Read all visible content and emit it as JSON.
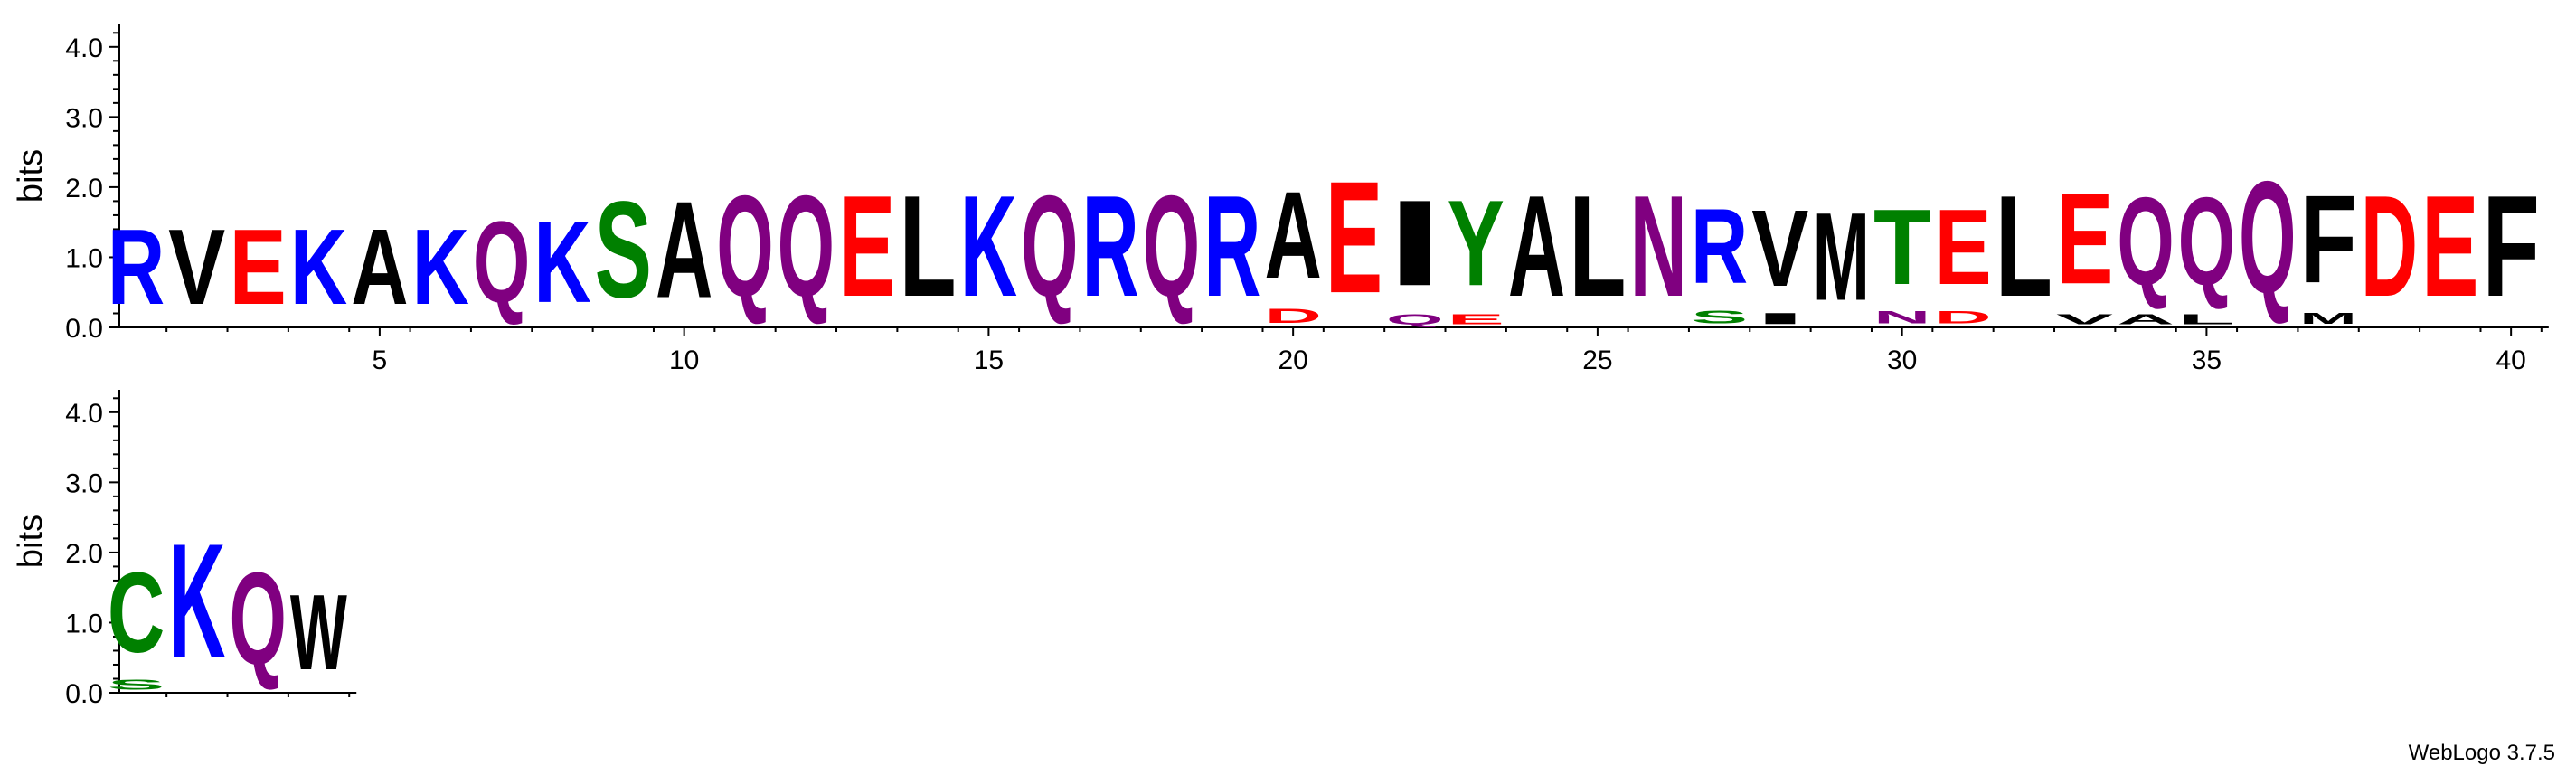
{
  "colors": {
    "blue": "#0000ff",
    "red": "#ff0000",
    "black": "#000000",
    "purple": "#800080",
    "green": "#008000"
  },
  "credit": "WebLogo 3.7.5",
  "chart_data": {
    "type": "sequence-logo",
    "ylabel": "bits",
    "ylim": [
      0,
      4.32
    ],
    "yticks": [
      "0.0",
      "1.0",
      "2.0",
      "3.0",
      "4.0"
    ],
    "xticks": [
      5,
      10,
      15,
      20,
      25,
      30,
      35,
      40
    ],
    "rows": [
      {
        "start": 1,
        "end": 40,
        "positions": [
          {
            "pos": 1,
            "stack": [
              {
                "letter": "R",
                "color": "blue",
                "bits": 1.72
              }
            ]
          },
          {
            "pos": 2,
            "stack": [
              {
                "letter": "V",
                "color": "black",
                "bits": 1.72
              }
            ]
          },
          {
            "pos": 3,
            "stack": [
              {
                "letter": "E",
                "color": "red",
                "bits": 1.72
              }
            ]
          },
          {
            "pos": 4,
            "stack": [
              {
                "letter": "K",
                "color": "blue",
                "bits": 1.72
              }
            ]
          },
          {
            "pos": 5,
            "stack": [
              {
                "letter": "A",
                "color": "black",
                "bits": 1.72
              }
            ]
          },
          {
            "pos": 6,
            "stack": [
              {
                "letter": "K",
                "color": "blue",
                "bits": 1.72
              }
            ]
          },
          {
            "pos": 7,
            "stack": [
              {
                "letter": "Q",
                "color": "purple",
                "bits": 1.85
              }
            ]
          },
          {
            "pos": 8,
            "stack": [
              {
                "letter": "K",
                "color": "blue",
                "bits": 1.85
              }
            ]
          },
          {
            "pos": 9,
            "stack": [
              {
                "letter": "S",
                "color": "green",
                "bits": 2.2
              }
            ]
          },
          {
            "pos": 10,
            "stack": [
              {
                "letter": "A",
                "color": "black",
                "bits": 2.2
              }
            ]
          },
          {
            "pos": 11,
            "stack": [
              {
                "letter": "Q",
                "color": "purple",
                "bits": 2.3
              }
            ]
          },
          {
            "pos": 12,
            "stack": [
              {
                "letter": "Q",
                "color": "purple",
                "bits": 2.3
              }
            ]
          },
          {
            "pos": 13,
            "stack": [
              {
                "letter": "E",
                "color": "red",
                "bits": 2.3
              }
            ]
          },
          {
            "pos": 14,
            "stack": [
              {
                "letter": "L",
                "color": "black",
                "bits": 2.3
              }
            ]
          },
          {
            "pos": 15,
            "stack": [
              {
                "letter": "K",
                "color": "blue",
                "bits": 2.3
              }
            ]
          },
          {
            "pos": 16,
            "stack": [
              {
                "letter": "Q",
                "color": "purple",
                "bits": 2.3
              }
            ]
          },
          {
            "pos": 17,
            "stack": [
              {
                "letter": "R",
                "color": "blue",
                "bits": 2.3
              }
            ]
          },
          {
            "pos": 18,
            "stack": [
              {
                "letter": "Q",
                "color": "purple",
                "bits": 2.3
              }
            ]
          },
          {
            "pos": 19,
            "stack": [
              {
                "letter": "R",
                "color": "blue",
                "bits": 2.3
              }
            ]
          },
          {
            "pos": 20,
            "stack": [
              {
                "letter": "D",
                "color": "red",
                "bits": 0.32
              },
              {
                "letter": "A",
                "color": "black",
                "bits": 1.98
              }
            ]
          },
          {
            "pos": 21,
            "stack": [
              {
                "letter": "E",
                "color": "red",
                "bits": 2.55
              }
            ]
          },
          {
            "pos": 22,
            "stack": [
              {
                "letter": "Q",
                "color": "purple",
                "bits": 0.22
              },
              {
                "letter": "I",
                "color": "black",
                "bits": 1.95
              }
            ]
          },
          {
            "pos": 23,
            "stack": [
              {
                "letter": "E",
                "color": "red",
                "bits": 0.22
              },
              {
                "letter": "Y",
                "color": "green",
                "bits": 1.95
              }
            ]
          },
          {
            "pos": 24,
            "stack": [
              {
                "letter": "A",
                "color": "black",
                "bits": 2.3
              }
            ]
          },
          {
            "pos": 25,
            "stack": [
              {
                "letter": "L",
                "color": "black",
                "bits": 2.3
              }
            ]
          },
          {
            "pos": 26,
            "stack": [
              {
                "letter": "N",
                "color": "purple",
                "bits": 2.3
              }
            ]
          },
          {
            "pos": 27,
            "stack": [
              {
                "letter": "S",
                "color": "green",
                "bits": 0.3
              },
              {
                "letter": "R",
                "color": "blue",
                "bits": 1.7
              }
            ]
          },
          {
            "pos": 28,
            "stack": [
              {
                "letter": "I",
                "color": "black",
                "bits": 0.25
              },
              {
                "letter": "V",
                "color": "black",
                "bits": 1.75
              }
            ]
          },
          {
            "pos": 29,
            "stack": [
              {
                "letter": "M",
                "color": "black",
                "bits": 2.0
              }
            ]
          },
          {
            "pos": 30,
            "stack": [
              {
                "letter": "N",
                "color": "purple",
                "bits": 0.28
              },
              {
                "letter": "T",
                "color": "green",
                "bits": 1.72
              }
            ]
          },
          {
            "pos": 31,
            "stack": [
              {
                "letter": "D",
                "color": "red",
                "bits": 0.28
              },
              {
                "letter": "E",
                "color": "red",
                "bits": 1.72
              }
            ]
          },
          {
            "pos": 32,
            "stack": [
              {
                "letter": "L",
                "color": "black",
                "bits": 2.3
              }
            ]
          },
          {
            "pos": 33,
            "stack": [
              {
                "letter": "V",
                "color": "black",
                "bits": 0.22
              },
              {
                "letter": "E",
                "color": "red",
                "bits": 2.08
              }
            ]
          },
          {
            "pos": 34,
            "stack": [
              {
                "letter": "A",
                "color": "black",
                "bits": 0.22
              },
              {
                "letter": "Q",
                "color": "purple",
                "bits": 2.0
              }
            ]
          },
          {
            "pos": 35,
            "stack": [
              {
                "letter": "L",
                "color": "black",
                "bits": 0.22
              },
              {
                "letter": "Q",
                "color": "purple",
                "bits": 2.0
              }
            ]
          },
          {
            "pos": 36,
            "stack": [
              {
                "letter": "Q",
                "color": "purple",
                "bits": 2.55
              }
            ]
          },
          {
            "pos": 37,
            "stack": [
              {
                "letter": "M",
                "color": "black",
                "bits": 0.25
              },
              {
                "letter": "F",
                "color": "black",
                "bits": 2.0
              }
            ]
          },
          {
            "pos": 38,
            "stack": [
              {
                "letter": "D",
                "color": "red",
                "bits": 2.3
              }
            ]
          },
          {
            "pos": 39,
            "stack": [
              {
                "letter": "E",
                "color": "red",
                "bits": 2.3
              }
            ]
          },
          {
            "pos": 40,
            "stack": [
              {
                "letter": "F",
                "color": "black",
                "bits": 2.3
              }
            ]
          }
        ]
      },
      {
        "start": 41,
        "end": 44,
        "positions": [
          {
            "pos": 41,
            "stack": [
              {
                "letter": "S",
                "color": "green",
                "bits": 0.22
              },
              {
                "letter": "C",
                "color": "green",
                "bits": 1.82
              }
            ]
          },
          {
            "pos": 42,
            "stack": [
              {
                "letter": "K",
                "color": "blue",
                "bits": 2.6
              }
            ]
          },
          {
            "pos": 43,
            "stack": [
              {
                "letter": "Q",
                "color": "purple",
                "bits": 2.1
              }
            ]
          },
          {
            "pos": 44,
            "stack": [
              {
                "letter": "W",
                "color": "black",
                "bits": 1.72
              }
            ]
          }
        ]
      }
    ]
  }
}
